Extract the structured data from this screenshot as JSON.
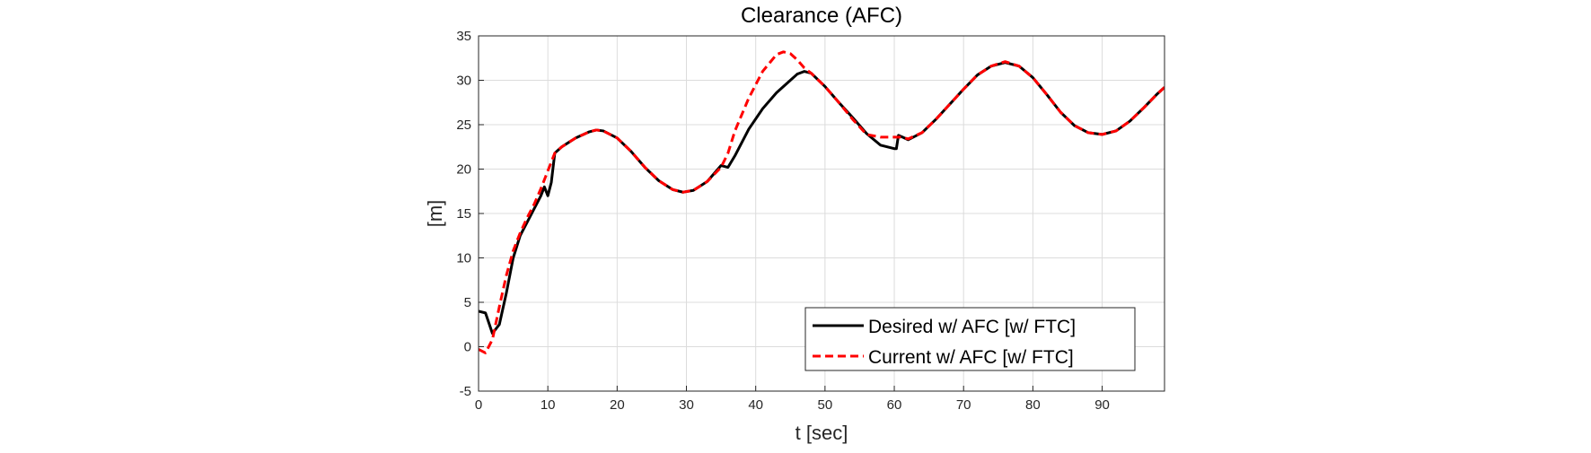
{
  "chart_data": {
    "type": "line",
    "title": "Clearance (AFC)",
    "xlabel": "t [sec]",
    "ylabel": "[m]",
    "xlim": [
      0,
      99
    ],
    "ylim": [
      -5,
      35
    ],
    "xticks": [
      0,
      10,
      20,
      30,
      40,
      50,
      60,
      70,
      80,
      90
    ],
    "yticks": [
      -5,
      0,
      5,
      10,
      15,
      20,
      25,
      30,
      35
    ],
    "grid": true,
    "legend_position": "bottom-right",
    "series": [
      {
        "name": "Desired w/ AFC [w/ FTC]",
        "color": "#000000",
        "style": "solid",
        "points": [
          [
            0,
            4.0
          ],
          [
            1,
            3.8
          ],
          [
            2,
            1.5
          ],
          [
            3,
            2.5
          ],
          [
            4,
            6.0
          ],
          [
            5,
            10.0
          ],
          [
            6,
            12.5
          ],
          [
            7,
            14.0
          ],
          [
            8,
            15.5
          ],
          [
            9,
            17.0
          ],
          [
            9.5,
            18.0
          ],
          [
            10,
            17.0
          ],
          [
            10.5,
            18.5
          ],
          [
            11,
            21.8
          ],
          [
            12,
            22.5
          ],
          [
            14,
            23.5
          ],
          [
            16,
            24.2
          ],
          [
            17,
            24.4
          ],
          [
            18,
            24.3
          ],
          [
            20,
            23.5
          ],
          [
            22,
            22.0
          ],
          [
            24,
            20.2
          ],
          [
            26,
            18.7
          ],
          [
            28,
            17.7
          ],
          [
            29.5,
            17.4
          ],
          [
            31,
            17.6
          ],
          [
            33,
            18.6
          ],
          [
            35,
            20.4
          ],
          [
            36,
            20.2
          ],
          [
            37,
            21.5
          ],
          [
            39,
            24.5
          ],
          [
            41,
            26.8
          ],
          [
            43,
            28.6
          ],
          [
            45,
            30.0
          ],
          [
            46,
            30.7
          ],
          [
            47,
            31.0
          ],
          [
            48,
            30.8
          ],
          [
            50,
            29.3
          ],
          [
            52,
            27.5
          ],
          [
            54,
            25.8
          ],
          [
            56,
            24.0
          ],
          [
            58,
            22.7
          ],
          [
            60,
            22.3
          ],
          [
            60.3,
            22.3
          ],
          [
            60.6,
            23.8
          ],
          [
            61.2,
            23.6
          ],
          [
            62,
            23.3
          ],
          [
            64,
            24.1
          ],
          [
            66,
            25.6
          ],
          [
            68,
            27.3
          ],
          [
            70,
            29.0
          ],
          [
            72,
            30.6
          ],
          [
            74,
            31.6
          ],
          [
            76,
            32.0
          ],
          [
            78,
            31.6
          ],
          [
            80,
            30.3
          ],
          [
            82,
            28.4
          ],
          [
            84,
            26.4
          ],
          [
            86,
            24.9
          ],
          [
            88,
            24.1
          ],
          [
            90,
            23.9
          ],
          [
            92,
            24.3
          ],
          [
            94,
            25.4
          ],
          [
            96,
            26.9
          ],
          [
            98,
            28.5
          ],
          [
            99,
            29.2
          ]
        ]
      },
      {
        "name": "Current w/ AFC [w/ FTC]",
        "color": "#ff0000",
        "style": "dashed",
        "points": [
          [
            0,
            -0.3
          ],
          [
            1,
            -0.7
          ],
          [
            2,
            0.8
          ],
          [
            3,
            4.5
          ],
          [
            4,
            8.0
          ],
          [
            5,
            10.8
          ],
          [
            6,
            12.8
          ],
          [
            7,
            14.5
          ],
          [
            8,
            16.0
          ],
          [
            9,
            17.8
          ],
          [
            10,
            19.8
          ],
          [
            11,
            21.8
          ],
          [
            12,
            22.5
          ],
          [
            14,
            23.5
          ],
          [
            16,
            24.2
          ],
          [
            17,
            24.4
          ],
          [
            18,
            24.3
          ],
          [
            20,
            23.5
          ],
          [
            22,
            22.0
          ],
          [
            24,
            20.2
          ],
          [
            26,
            18.7
          ],
          [
            28,
            17.7
          ],
          [
            29.5,
            17.4
          ],
          [
            31,
            17.6
          ],
          [
            33,
            18.6
          ],
          [
            35,
            20.2
          ],
          [
            36,
            21.8
          ],
          [
            37,
            24.3
          ],
          [
            39,
            28.0
          ],
          [
            41,
            31.0
          ],
          [
            43,
            32.9
          ],
          [
            44,
            33.2
          ],
          [
            45,
            33.0
          ],
          [
            46,
            32.3
          ],
          [
            47,
            31.4
          ],
          [
            48,
            30.8
          ],
          [
            50,
            29.3
          ],
          [
            52,
            27.5
          ],
          [
            54,
            25.6
          ],
          [
            56,
            23.9
          ],
          [
            58,
            23.6
          ],
          [
            60,
            23.6
          ],
          [
            61,
            23.6
          ],
          [
            62,
            23.4
          ],
          [
            64,
            24.1
          ],
          [
            66,
            25.6
          ],
          [
            68,
            27.3
          ],
          [
            70,
            29.0
          ],
          [
            72,
            30.6
          ],
          [
            74,
            31.6
          ],
          [
            76,
            32.1
          ],
          [
            78,
            31.6
          ],
          [
            80,
            30.3
          ],
          [
            82,
            28.4
          ],
          [
            84,
            26.4
          ],
          [
            86,
            24.9
          ],
          [
            88,
            24.1
          ],
          [
            90,
            23.9
          ],
          [
            92,
            24.3
          ],
          [
            94,
            25.4
          ],
          [
            96,
            26.9
          ],
          [
            98,
            28.5
          ],
          [
            99,
            29.2
          ]
        ]
      }
    ]
  }
}
